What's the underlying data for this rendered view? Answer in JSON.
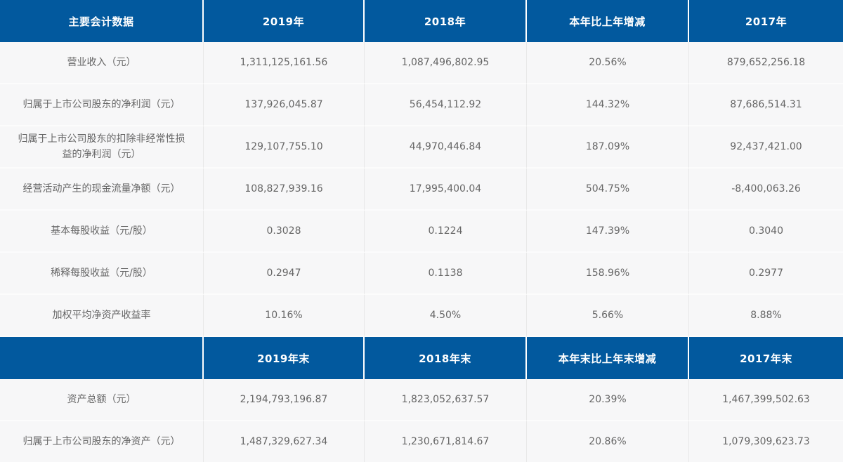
{
  "accent_color": "#02599e",
  "row_background": "#f7f7f8",
  "text_color": "#666666",
  "table1": {
    "headers": [
      "主要会计数据",
      "2019年",
      "2018年",
      "本年比上年增减",
      "2017年"
    ],
    "rows": [
      {
        "label": "营业收入（元）",
        "values": [
          "1,311,125,161.56",
          "1,087,496,802.95",
          "20.56%",
          "879,652,256.18"
        ]
      },
      {
        "label": "归属于上市公司股东的净利润（元）",
        "values": [
          "137,926,045.87",
          "56,454,112.92",
          "144.32%",
          "87,686,514.31"
        ]
      },
      {
        "label": "归属于上市公司股东的扣除非经常性损益的净利润（元）",
        "values": [
          "129,107,755.10",
          "44,970,446.84",
          "187.09%",
          "92,437,421.00"
        ]
      },
      {
        "label": "经营活动产生的现金流量净额（元）",
        "values": [
          "108,827,939.16",
          "17,995,400.04",
          "504.75%",
          "-8,400,063.26"
        ]
      },
      {
        "label": "基本每股收益（元/股）",
        "values": [
          "0.3028",
          "0.1224",
          "147.39%",
          "0.3040"
        ]
      },
      {
        "label": "稀释每股收益（元/股）",
        "values": [
          "0.2947",
          "0.1138",
          "158.96%",
          "0.2977"
        ]
      },
      {
        "label": "加权平均净资产收益率",
        "values": [
          "10.16%",
          "4.50%",
          "5.66%",
          "8.88%"
        ]
      }
    ]
  },
  "table2": {
    "headers": [
      "",
      "2019年末",
      "2018年末",
      "本年末比上年末增减",
      "2017年末"
    ],
    "rows": [
      {
        "label": "资产总额（元）",
        "values": [
          "2,194,793,196.87",
          "1,823,052,637.57",
          "20.39%",
          "1,467,399,502.63"
        ]
      },
      {
        "label": "归属于上市公司股东的净资产（元）",
        "values": [
          "1,487,329,627.34",
          "1,230,671,814.67",
          "20.86%",
          "1,079,309,623.73"
        ]
      }
    ]
  }
}
